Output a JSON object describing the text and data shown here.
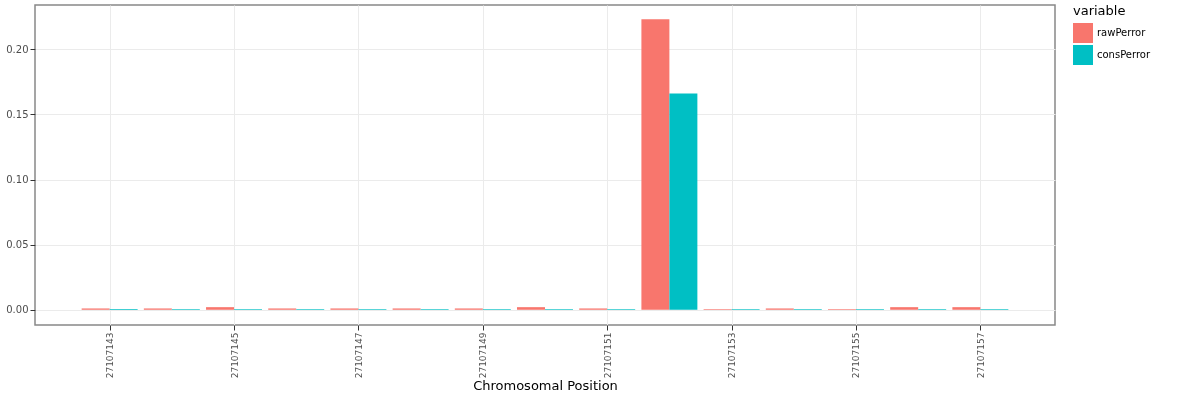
{
  "chart_data": {
    "type": "bar",
    "xlabel": "Chromosomal Position",
    "legend_title": "variable",
    "x": [
      27107143,
      27107144,
      27107145,
      27107146,
      27107147,
      27107148,
      27107149,
      27107150,
      27107151,
      27107152,
      27107153,
      27107154,
      27107155,
      27107156,
      27107157
    ],
    "series": [
      {
        "name": "rawPerror",
        "color": "#f8766d",
        "values": [
          0.001,
          0.001,
          0.002,
          0.001,
          0.001,
          0.001,
          0.001,
          0.002,
          0.001,
          0.223,
          0.0005,
          0.001,
          0.0005,
          0.002,
          0.002
        ]
      },
      {
        "name": "consPerror",
        "color": "#00bfc4",
        "values": [
          0.0005,
          0.0005,
          0.0005,
          0.0005,
          0.0005,
          0.0005,
          0.0005,
          0.0005,
          0.0005,
          0.166,
          0.0005,
          0.0005,
          0.0005,
          0.0005,
          0.0005
        ]
      }
    ],
    "xlim": [
      27107141.8,
      27107158.2
    ],
    "xticks": [
      27107143,
      27107145,
      27107147,
      27107149,
      27107151,
      27107153,
      27107155,
      27107157
    ],
    "ylim": [
      -0.0117,
      0.234
    ],
    "yticks": [
      {
        "value": 0,
        "label": "0.00"
      },
      {
        "value": 0.05,
        "label": "0.05"
      },
      {
        "value": 0.1,
        "label": "0.10"
      },
      {
        "value": 0.15,
        "label": "0.15"
      },
      {
        "value": 0.2,
        "label": "0.20"
      }
    ],
    "grid": true,
    "legend": "right"
  }
}
